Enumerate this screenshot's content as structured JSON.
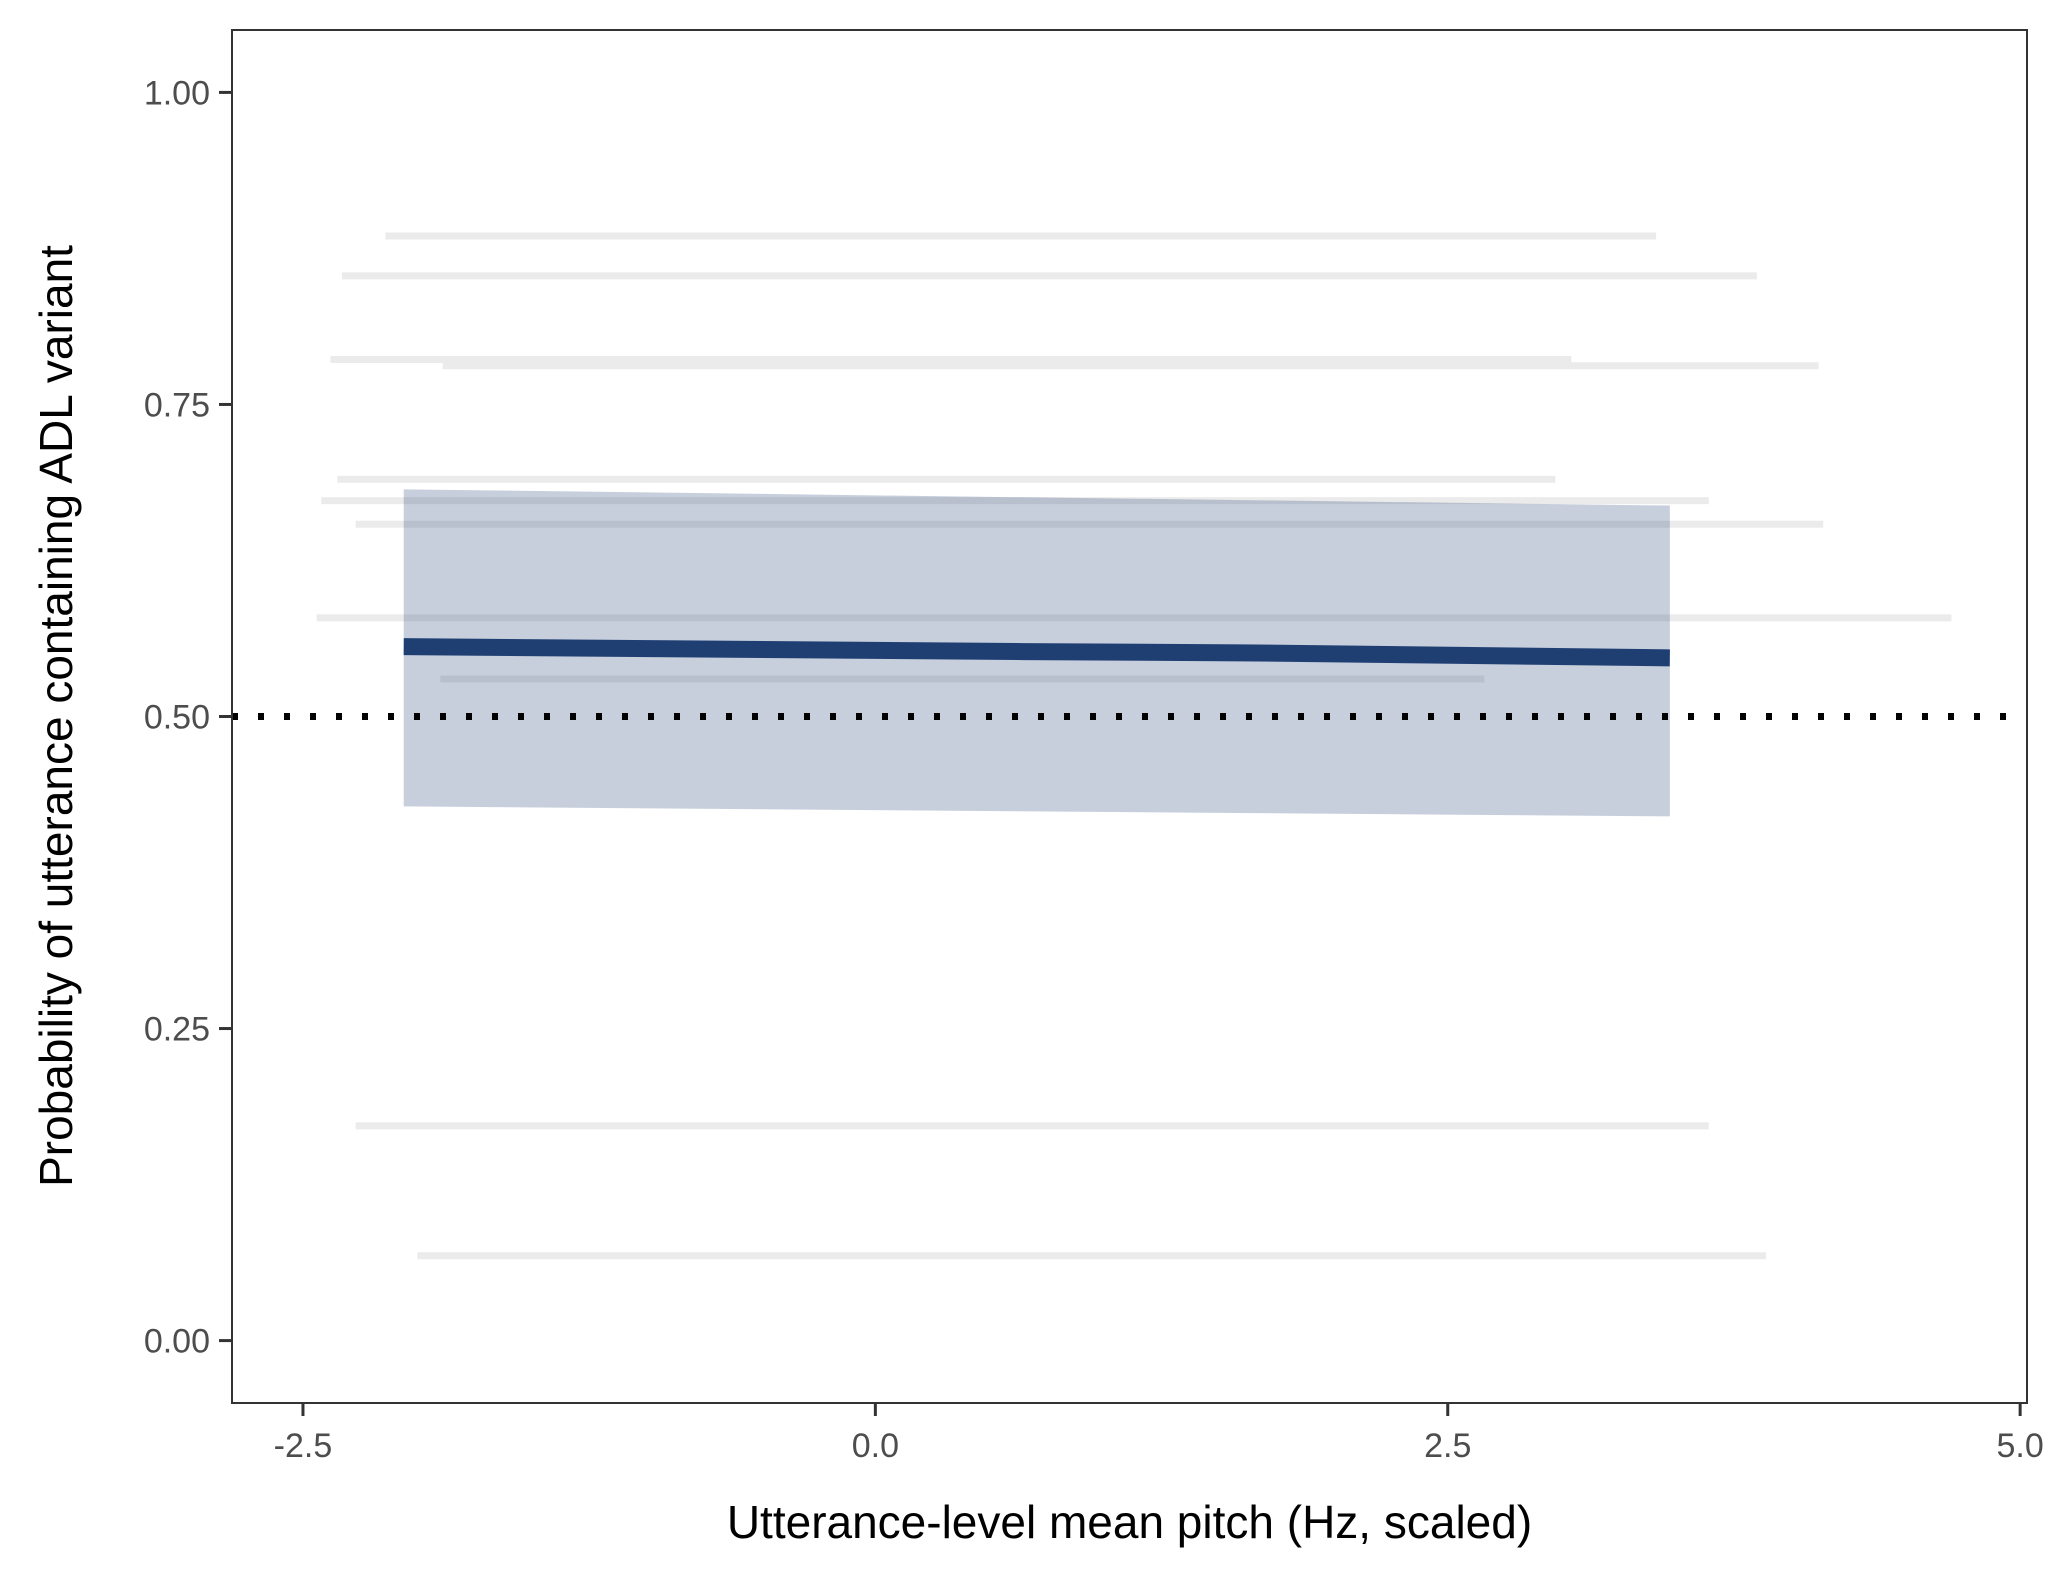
{
  "chart_data": {
    "type": "line",
    "title": "",
    "xlabel": "Utterance-level mean pitch (Hz, scaled)",
    "ylabel": "Probability of utterance containing ADL variant",
    "xlim": [
      -2.81,
      5.03
    ],
    "ylim": [
      -0.05,
      1.05
    ],
    "x_ticks": [
      -2.5,
      0.0,
      2.5,
      5.0
    ],
    "x_tick_labels": [
      "-2.5",
      "0.0",
      "2.5",
      "5.0"
    ],
    "y_ticks": [
      0.0,
      0.25,
      0.5,
      0.75,
      1.0
    ],
    "y_tick_labels": [
      "0.00",
      "0.25",
      "0.50",
      "0.75",
      "1.00"
    ],
    "grid": false,
    "reference_line": {
      "y": 0.5,
      "style": "dotted",
      "color": "#000000"
    },
    "fit": {
      "x": [
        -2.06,
        0.65,
        1.6,
        3.47
      ],
      "y": [
        0.556,
        0.552,
        0.551,
        0.547
      ],
      "color": "#1f3f73"
    },
    "ribbon": {
      "x": [
        -2.06,
        3.47
      ],
      "lower": [
        0.428,
        0.42
      ],
      "upper": [
        0.682,
        0.669
      ],
      "color": "#1f3f73",
      "opacity": 0.25
    },
    "individual_lines": {
      "color": "#ebebeb",
      "lines": [
        {
          "x": [
            -2.14,
            3.41
          ],
          "y": [
            0.885,
            0.885
          ]
        },
        {
          "x": [
            -2.33,
            3.85
          ],
          "y": [
            0.853,
            0.853
          ]
        },
        {
          "x": [
            -2.38,
            3.04
          ],
          "y": [
            0.786,
            0.786
          ]
        },
        {
          "x": [
            -1.89,
            4.12
          ],
          "y": [
            0.781,
            0.781
          ]
        },
        {
          "x": [
            -2.35,
            2.97
          ],
          "y": [
            0.69,
            0.69
          ]
        },
        {
          "x": [
            -2.42,
            3.64
          ],
          "y": [
            0.673,
            0.673
          ]
        },
        {
          "x": [
            -2.27,
            4.14
          ],
          "y": [
            0.654,
            0.654
          ]
        },
        {
          "x": [
            -2.44,
            4.7
          ],
          "y": [
            0.579,
            0.579
          ]
        },
        {
          "x": [
            -1.9,
            2.66
          ],
          "y": [
            0.53,
            0.53
          ]
        },
        {
          "x": [
            -2.27,
            3.64
          ],
          "y": [
            0.172,
            0.172
          ]
        },
        {
          "x": [
            -2.0,
            3.89
          ],
          "y": [
            0.068,
            0.068
          ]
        }
      ]
    }
  }
}
